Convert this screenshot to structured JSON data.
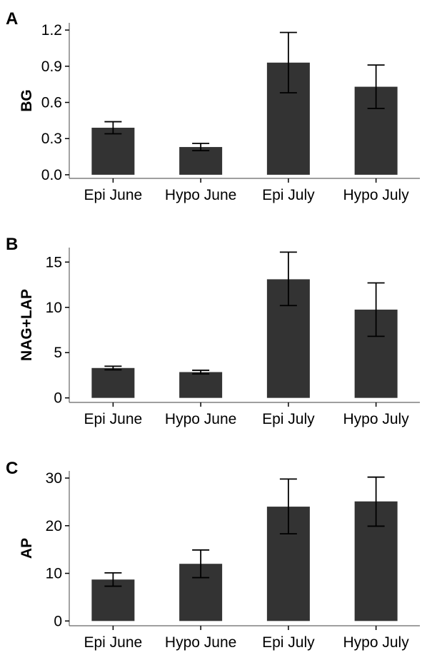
{
  "chart_data": [
    {
      "type": "bar",
      "panel_label": "A",
      "ylabel": "BG",
      "xlabel": "",
      "categories": [
        "Epi June",
        "Hypo June",
        "Epi July",
        "Hypo July"
      ],
      "values": [
        0.39,
        0.23,
        0.93,
        0.73
      ],
      "error_low": [
        0.34,
        0.2,
        0.68,
        0.55
      ],
      "error_high": [
        0.44,
        0.26,
        1.18,
        0.91
      ],
      "ylim": [
        -0.03,
        1.26
      ],
      "yticks": [
        0.0,
        0.3,
        0.6,
        0.9,
        1.2
      ],
      "ytick_labels": [
        "0.0",
        "0.3",
        "0.6",
        "0.9",
        "1.2"
      ],
      "bar_color": "#333333",
      "grid": false
    },
    {
      "type": "bar",
      "panel_label": "B",
      "ylabel": "NAG+LAP",
      "xlabel": "",
      "categories": [
        "Epi June",
        "Hypo June",
        "Epi July",
        "Hypo July"
      ],
      "values": [
        3.3,
        2.85,
        13.1,
        9.75
      ],
      "error_low": [
        3.1,
        2.65,
        10.2,
        6.8
      ],
      "error_high": [
        3.5,
        3.05,
        16.1,
        12.7
      ],
      "ylim": [
        -0.5,
        16.6
      ],
      "yticks": [
        0,
        5,
        10,
        15
      ],
      "ytick_labels": [
        "0",
        "5",
        "10",
        "15"
      ],
      "bar_color": "#333333",
      "grid": false
    },
    {
      "type": "bar",
      "panel_label": "C",
      "ylabel": "AP",
      "xlabel": "",
      "categories": [
        "Epi June",
        "Hypo June",
        "Epi July",
        "Hypo July"
      ],
      "values": [
        8.7,
        12.0,
        24.0,
        25.1
      ],
      "error_low": [
        7.3,
        9.1,
        18.3,
        19.9
      ],
      "error_high": [
        10.1,
        14.9,
        29.8,
        30.2
      ],
      "ylim": [
        -1,
        31.5
      ],
      "yticks": [
        0,
        10,
        20,
        30
      ],
      "ytick_labels": [
        "0",
        "10",
        "20",
        "30"
      ],
      "bar_color": "#333333",
      "grid": false
    }
  ]
}
